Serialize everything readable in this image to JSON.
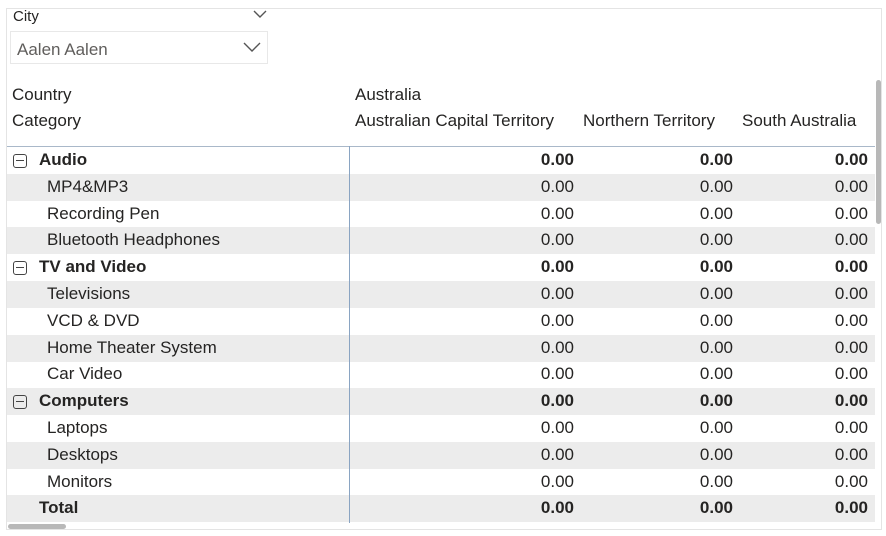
{
  "slicer": {
    "title": "City",
    "selected_value": "Aalen Aalen"
  },
  "matrix": {
    "row_header_country": "Country",
    "row_header_category": "Category",
    "country": "Australia",
    "columns": [
      "Australian Capital Territory",
      "Northern Territory",
      "South Australia"
    ],
    "rows": [
      {
        "label": "Audio",
        "type": "group",
        "values": [
          "0.00",
          "0.00",
          "0.00"
        ]
      },
      {
        "label": "MP4&MP3",
        "type": "item",
        "values": [
          "0.00",
          "0.00",
          "0.00"
        ]
      },
      {
        "label": "Recording Pen",
        "type": "item",
        "values": [
          "0.00",
          "0.00",
          "0.00"
        ]
      },
      {
        "label": "Bluetooth Headphones",
        "type": "item",
        "values": [
          "0.00",
          "0.00",
          "0.00"
        ]
      },
      {
        "label": "TV and Video",
        "type": "group",
        "values": [
          "0.00",
          "0.00",
          "0.00"
        ]
      },
      {
        "label": "Televisions",
        "type": "item",
        "values": [
          "0.00",
          "0.00",
          "0.00"
        ]
      },
      {
        "label": "VCD & DVD",
        "type": "item",
        "values": [
          "0.00",
          "0.00",
          "0.00"
        ]
      },
      {
        "label": "Home Theater System",
        "type": "item",
        "values": [
          "0.00",
          "0.00",
          "0.00"
        ]
      },
      {
        "label": "Car Video",
        "type": "item",
        "values": [
          "0.00",
          "0.00",
          "0.00"
        ]
      },
      {
        "label": "Computers",
        "type": "group",
        "values": [
          "0.00",
          "0.00",
          "0.00"
        ]
      },
      {
        "label": "Laptops",
        "type": "item",
        "values": [
          "0.00",
          "0.00",
          "0.00"
        ]
      },
      {
        "label": "Desktops",
        "type": "item",
        "values": [
          "0.00",
          "0.00",
          "0.00"
        ]
      },
      {
        "label": "Monitors",
        "type": "item",
        "values": [
          "0.00",
          "0.00",
          "0.00"
        ]
      },
      {
        "label": "Total",
        "type": "total",
        "values": [
          "0.00",
          "0.00",
          "0.00"
        ]
      }
    ]
  },
  "icons": {
    "group_toggle": "collapse-minus-icon",
    "slicer_toggle": "chevron-down-icon"
  },
  "colors": {
    "row_shade": "#ececec",
    "divider": "#8aa4c2"
  }
}
